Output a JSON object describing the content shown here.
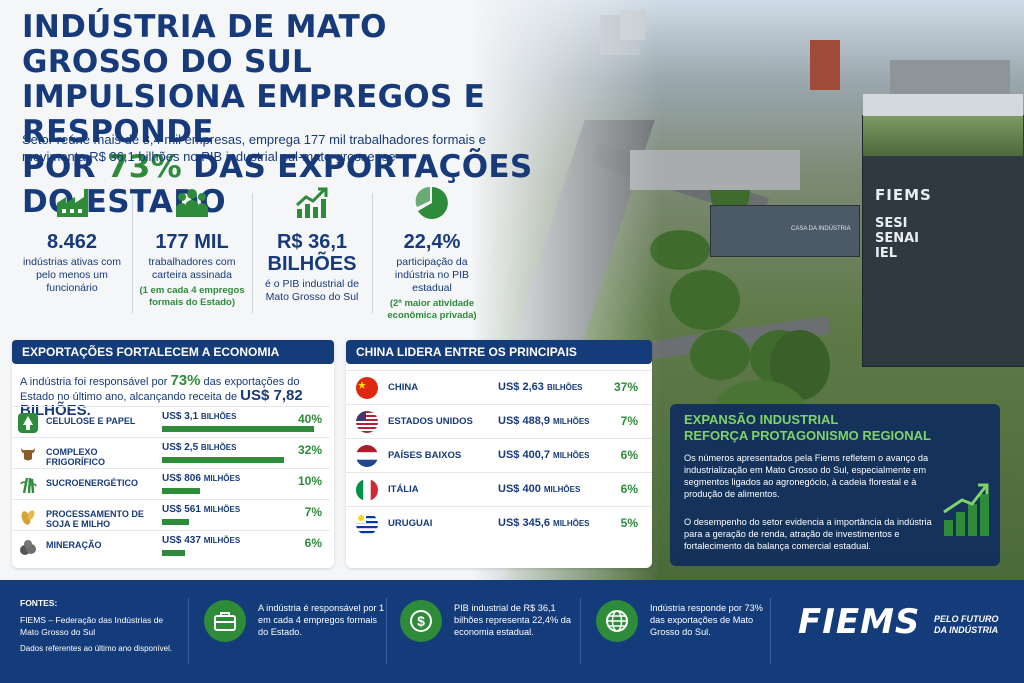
{
  "header": {
    "title_line1": "INDÚSTRIA DE MATO GROSSO DO SUL",
    "title_line2": "IMPULSIONA EMPREGOS E RESPONDE",
    "title_line3_pre": "POR ",
    "title_line3_pct": "73%",
    "title_line3_post": " DAS EXPORTAÇÕES DO ESTADO",
    "subtitle": "Setor reúne mais de 8,4 mil empresas, emprega 177 mil trabalhadores formais e movimenta R$ 36,1 bilhões no PIB industrial sul-mato-grossense"
  },
  "stats": [
    {
      "icon": "factory-icon",
      "value": "8.462",
      "label": "indústrias ativas com pelo menos um funcionário",
      "note": ""
    },
    {
      "icon": "people-icon",
      "value": "177 MIL",
      "label": "trabalhadores com carteira assinada",
      "note": "(1 em cada 4 empregos formais do Estado)"
    },
    {
      "icon": "growth-chart-icon",
      "value": "R$ 36,1 BILHÕES",
      "label": "é o PIB industrial de Mato Grosso do Sul",
      "note": ""
    },
    {
      "icon": "pie-chart-icon",
      "value": "22,4%",
      "label": "participação da indústria no PIB estadual",
      "note": "(2ª maior atividade econômica privada)"
    }
  ],
  "exports": {
    "title": "EXPORTAÇÕES FORTALECEM A ECONOMIA ESTADUAL",
    "intro_pre": "A indústria foi responsável por",
    "intro_pct": "73%",
    "intro_mid": "das exportações do Estado no último ano, alcançando receita de",
    "intro_total": "US$ 7,82 BILHÕES.",
    "rows": [
      {
        "icon": "tree-icon",
        "name": "CELULOSE E PAPEL",
        "amount": "US$ 3,1",
        "unit": "BILHÕES",
        "pct": "40%",
        "share": 40
      },
      {
        "icon": "cattle-icon",
        "name": "COMPLEXO FRIGORÍFICO",
        "amount": "US$ 2,5",
        "unit": "BILHÕES",
        "pct": "32%",
        "share": 32
      },
      {
        "icon": "sugarcane-icon",
        "name": "SUCROENERGÉTICO",
        "amount": "US$ 806",
        "unit": "MILHÕES",
        "pct": "10%",
        "share": 10
      },
      {
        "icon": "soy-icon",
        "name": "PROCESSAMENTO DE SOJA E MILHO",
        "amount": "US$ 561",
        "unit": "MILHÕES",
        "pct": "7%",
        "share": 7
      },
      {
        "icon": "ore-icon",
        "name": "MINERAÇÃO",
        "amount": "US$ 437",
        "unit": "MILHÕES",
        "pct": "6%",
        "share": 6
      }
    ]
  },
  "buyers": {
    "title": "CHINA LIDERA ENTRE OS PRINCIPAIS COMPRADORES",
    "rows": [
      {
        "flag": "china-flag-icon",
        "name": "CHINA",
        "amount": "US$ 2,63",
        "unit": "BILHÕES",
        "pct": "37%"
      },
      {
        "flag": "usa-flag-icon",
        "name": "ESTADOS UNIDOS",
        "amount": "US$ 488,9",
        "unit": "MILHÕES",
        "pct": "7%"
      },
      {
        "flag": "netherlands-flag-icon",
        "name": "PAÍSES BAIXOS",
        "amount": "US$ 400,7",
        "unit": "MILHÕES",
        "pct": "6%"
      },
      {
        "flag": "italy-flag-icon",
        "name": "ITÁLIA",
        "amount": "US$ 400",
        "unit": "MILHÕES",
        "pct": "6%"
      },
      {
        "flag": "uruguay-flag-icon",
        "name": "URUGUAI",
        "amount": "US$ 345,6",
        "unit": "MILHÕES",
        "pct": "5%"
      }
    ]
  },
  "expansion": {
    "title_line1": "EXPANSÃO INDUSTRIAL",
    "title_line2": "REFORÇA PROTAGONISMO REGIONAL",
    "p1": "Os números apresentados pela Fiems refletem o avanço da industrialização em Mato Grosso do Sul, especialmente em segmentos ligados ao agronegócio, à cadeia florestal e à produção de alimentos.",
    "p2": "O desempenho do setor evidencia a importância da indústria para a geração de renda, atração de investimentos e fortalecimento da balança comercial estadual."
  },
  "photo": {
    "building_logo": "FIEMS",
    "building_sign": "SESI SENAI IEL",
    "casa_sign": "CASA DA INDÚSTRIA"
  },
  "footer": {
    "sources_label": "FONTES:",
    "sources_text": "FIEMS – Federação das Indústrias de Mato Grosso do Sul",
    "sources_note": "Dados referentes ao último ano disponível.",
    "items": [
      {
        "icon": "briefcase-icon",
        "text": "A indústria é responsável por 1 em cada 4 empregos formais do Estado."
      },
      {
        "icon": "dollar-icon",
        "text": "PIB industrial de R$ 36,1 bilhões representa 22,4% da economia estadual."
      },
      {
        "icon": "globe-icon",
        "text": "Indústria responde por 73% das exportações de Mato Grosso do Sul."
      }
    ],
    "brand": "FIEMS",
    "tagline": "PELO FUTURO DA INDÚSTRIA"
  },
  "colors": {
    "navy": "#143b7a",
    "green": "#2e8b3a"
  }
}
